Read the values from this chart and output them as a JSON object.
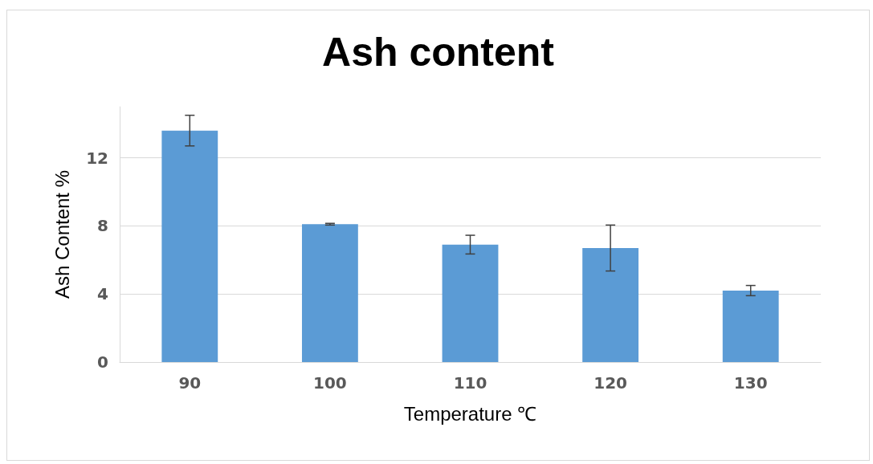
{
  "chart_data": {
    "type": "bar",
    "title": "Ash content",
    "xlabel": "Temperature ℃",
    "ylabel": "Ash Content %",
    "categories": [
      "90",
      "100",
      "110",
      "120",
      "130"
    ],
    "values": [
      13.6,
      8.1,
      6.9,
      6.7,
      4.2
    ],
    "errors": [
      0.9,
      0.05,
      0.55,
      1.35,
      0.3
    ],
    "color": "#5b9bd5",
    "ylim": [
      0,
      15
    ],
    "yticks": [
      0,
      4,
      8,
      12
    ],
    "grid": "y"
  }
}
